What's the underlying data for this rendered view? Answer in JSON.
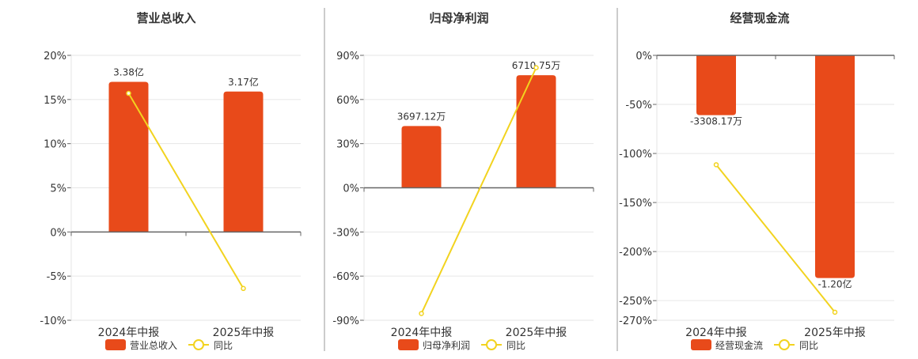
{
  "colors": {
    "bar": "#e84a1a",
    "line": "#f2d31f",
    "grid": "#e6e6e6",
    "axis": "#666666",
    "divider": "#999999",
    "text": "#333333"
  },
  "chart_data": [
    {
      "type": "bar",
      "title": "营业总收入",
      "categories": [
        "2024年中报",
        "2025年中报"
      ],
      "yticks": [
        "20%",
        "15%",
        "10%",
        "5%",
        "0%",
        "-5%",
        "-10%"
      ],
      "ylim": [
        -10,
        20
      ],
      "series": [
        {
          "name": "营业总收入",
          "type": "bar",
          "values": [
            17.0,
            15.9
          ],
          "labels": [
            "3.38亿",
            "3.17亿"
          ]
        },
        {
          "name": "同比",
          "type": "line",
          "values": [
            15.7,
            -6.4
          ]
        }
      ],
      "legend": [
        "营业总收入",
        "同比"
      ],
      "grid": true
    },
    {
      "type": "bar",
      "title": "归母净利润",
      "categories": [
        "2024年中报",
        "2025年中报"
      ],
      "yticks": [
        "90%",
        "60%",
        "30%",
        "0%",
        "-30%",
        "-60%",
        "-90%"
      ],
      "ylim": [
        -90,
        90
      ],
      "series": [
        {
          "name": "归母净利润",
          "type": "bar",
          "values": [
            42.0,
            76.5
          ],
          "labels": [
            "3697.12万",
            "6710.75万"
          ]
        },
        {
          "name": "同比",
          "type": "line",
          "values": [
            -85.4,
            81.6
          ]
        }
      ],
      "legend": [
        "归母净利润",
        "同比"
      ],
      "grid": true
    },
    {
      "type": "bar",
      "title": "经营现金流",
      "categories": [
        "2024年中报",
        "2025年中报"
      ],
      "yticks": [
        "0%",
        "-50%",
        "-100%",
        "-150%",
        "-200%",
        "-250%",
        "-270%"
      ],
      "ytick_values": [
        0,
        -50,
        -100,
        -150,
        -200,
        -250,
        -270
      ],
      "ylim": [
        -270,
        0
      ],
      "series": [
        {
          "name": "经营现金流",
          "type": "bar",
          "values": [
            -61.0,
            -227.0
          ],
          "labels": [
            "-3308.17万",
            "-1.20亿"
          ]
        },
        {
          "name": "同比",
          "type": "line",
          "values": [
            -111.5,
            -261.8
          ]
        }
      ],
      "legend": [
        "经营现金流",
        "同比"
      ],
      "grid": true
    }
  ]
}
